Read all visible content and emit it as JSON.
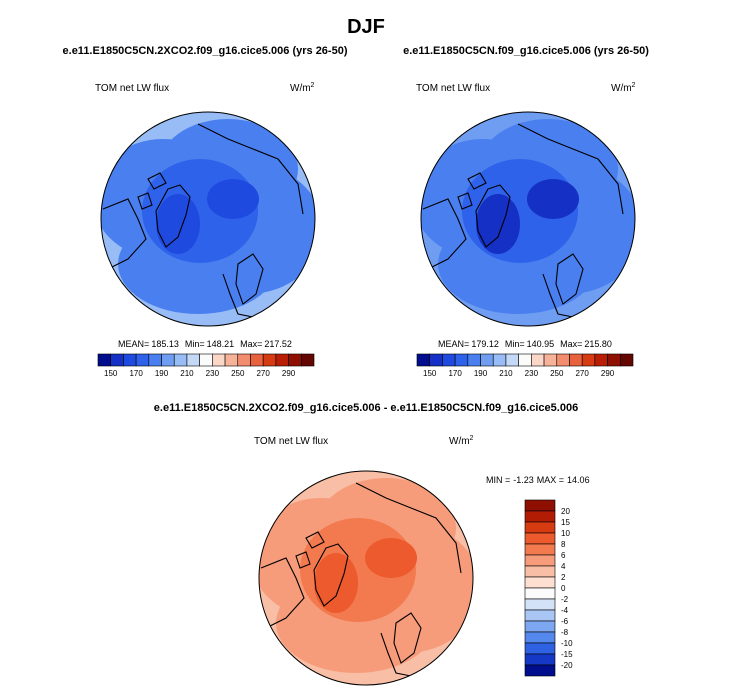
{
  "chart_data": {
    "type": "heatmap",
    "title": "DJF",
    "panels": [
      {
        "case": "e.e11.E1850C5CN.2XCO2.f09_g16.cice5.006 (yrs 26-50)",
        "variable": "TOM net LW flux",
        "units": "W/m",
        "units_sup": "2",
        "stats": {
          "mean_label": "MEAN=",
          "mean": "185.13",
          "min_label": "Min=",
          "min": "148.21",
          "max_label": "Max=",
          "max": "217.52"
        },
        "field": {
          "pole": 160,
          "ring1": 175,
          "ring2": 185,
          "ring3": 200
        }
      },
      {
        "case": "e.e11.E1850C5CN.f09_g16.cice5.006 (yrs 26-50)",
        "variable": "TOM net LW flux",
        "units": "W/m",
        "units_sup": "2",
        "stats": {
          "mean_label": "MEAN=",
          "mean": "179.12",
          "min_label": "Min=",
          "min": "140.95",
          "max_label": "Max=",
          "max": "215.80"
        },
        "field": {
          "pole": 155,
          "ring1": 170,
          "ring2": 180,
          "ring3": 195
        }
      }
    ],
    "abs_colorbar": {
      "ticks": [
        "150",
        "170",
        "190",
        "210",
        "230",
        "250",
        "270",
        "290"
      ],
      "colors": [
        "#000d8c",
        "#1530c4",
        "#1f4ae0",
        "#2f62ea",
        "#4a7ff0",
        "#6f9df2",
        "#98bcf5",
        "#c4d9f7",
        "#fbfbfb",
        "#fbd7c7",
        "#f7b39a",
        "#f28d6e",
        "#e8623d",
        "#d63b12",
        "#b91e05",
        "#8f0f03",
        "#640602"
      ]
    },
    "difference": {
      "title": "e.e11.E1850C5CN.2XCO2.f09_g16.cice5.006 - e.e11.E1850C5CN.f09_g16.cice5.006",
      "variable": "TOM net LW flux",
      "units": "W/m",
      "units_sup": "2",
      "stats": {
        "min_label": "MIN =",
        "min": "-1.23",
        "max_label": "MAX =",
        "max": "14.06"
      },
      "field": {
        "pole": 12,
        "ring1": 9,
        "ring2": 5,
        "ring3": 3
      }
    },
    "diff_colorbar": {
      "ticks": [
        "20",
        "15",
        "10",
        "8",
        "6",
        "4",
        "2",
        "0",
        "-2",
        "-4",
        "-6",
        "-8",
        "-10",
        "-15",
        "-20"
      ],
      "colors": [
        "#8f0f03",
        "#b31c04",
        "#d63b12",
        "#ec5a2d",
        "#f27a4e",
        "#f69c7a",
        "#f9bea6",
        "#fde0d2",
        "#fbfbfb",
        "#d3e2f7",
        "#a9c6f4",
        "#7ea7f1",
        "#5488ec",
        "#2f62e3",
        "#1638c7",
        "#000d8c"
      ]
    }
  }
}
